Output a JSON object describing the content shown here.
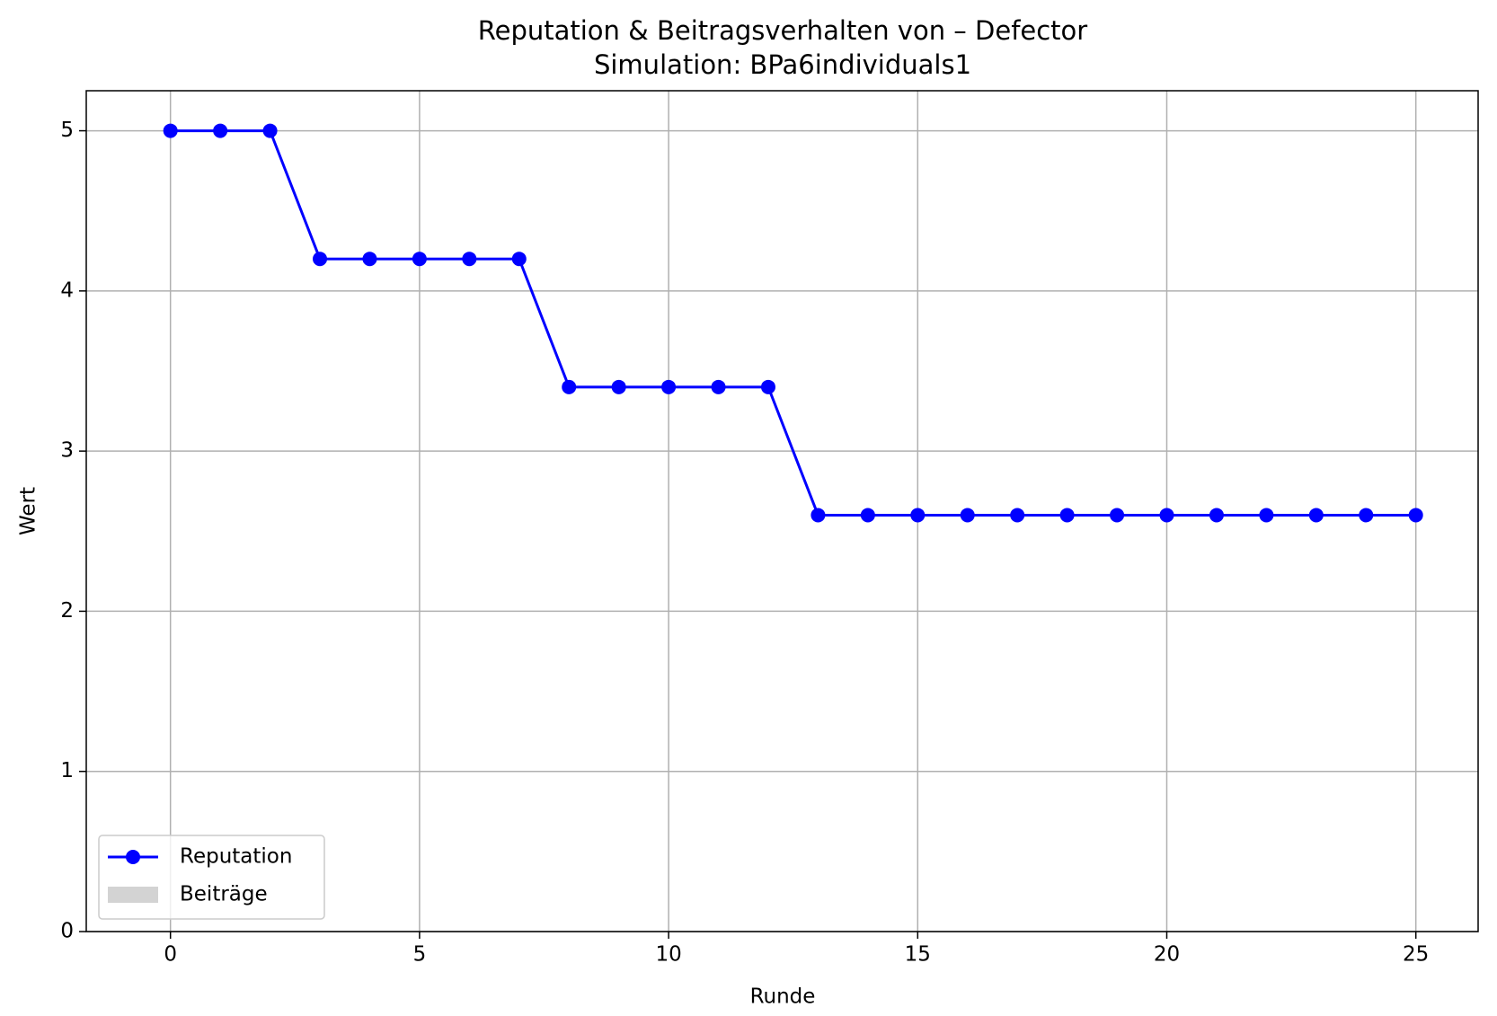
{
  "chart_data": {
    "type": "line",
    "title": "Reputation & Beitragsverhalten von – Defector",
    "subtitle": "Simulation: BPa6individuals1",
    "x_label": "Runde",
    "y_label": "Wert",
    "x": [
      0,
      1,
      2,
      3,
      4,
      5,
      6,
      7,
      8,
      9,
      10,
      11,
      12,
      13,
      14,
      15,
      16,
      17,
      18,
      19,
      20,
      21,
      22,
      23,
      24,
      25
    ],
    "series": [
      {
        "name": "Reputation",
        "color": "#0000ff",
        "values": [
          5,
          5,
          5,
          4.2,
          4.2,
          4.2,
          4.2,
          4.2,
          3.4,
          3.4,
          3.4,
          3.4,
          3.4,
          2.6,
          2.6,
          2.6,
          2.6,
          2.6,
          2.6,
          2.6,
          2.6,
          2.6,
          2.6,
          2.6,
          2.6,
          2.6
        ]
      },
      {
        "name": "Beiträge",
        "color": "#d3d3d3"
      }
    ],
    "xlim": [
      -1.69,
      26.25
    ],
    "ylim": [
      0,
      5.25
    ],
    "xticks": [
      0,
      5,
      10,
      15,
      20,
      25
    ],
    "yticks": [
      0,
      1,
      2,
      3,
      4,
      5
    ],
    "grid": true,
    "legend": "lower left"
  }
}
